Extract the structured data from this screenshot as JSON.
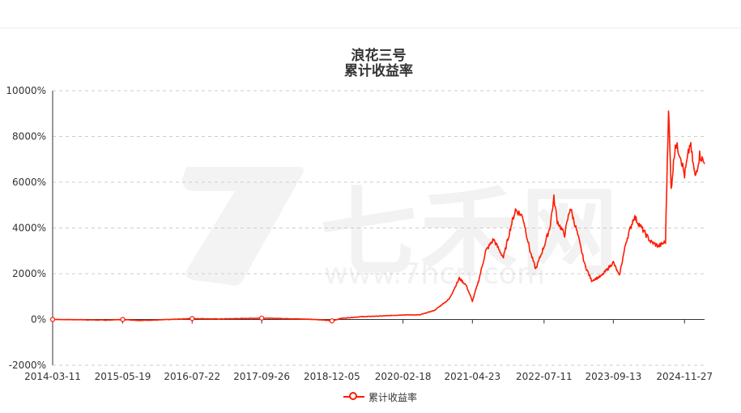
{
  "page": {
    "title_line1": "浪花三号",
    "title_line2": "累计收益率",
    "watermark_text": "七禾网",
    "watermark_url": "www.7hcn.com"
  },
  "legend": {
    "label": "累计收益率"
  },
  "chart_data": {
    "type": "line",
    "title": "浪花三号 累计收益率",
    "xlabel": "",
    "ylabel": "",
    "y_unit": "%",
    "ylim": [
      -2000,
      10000
    ],
    "y_ticks": [
      -2000,
      0,
      2000,
      4000,
      6000,
      8000,
      10000
    ],
    "y_tick_labels": [
      "-2000%",
      "0%",
      "2000%",
      "4000%",
      "6000%",
      "8000%",
      "10000%"
    ],
    "x_tick_labels": [
      "2014-03-11",
      "2015-05-19",
      "2016-07-22",
      "2017-09-26",
      "2018-12-05",
      "2020-02-18",
      "2021-04-23",
      "2022-07-11",
      "2023-09-13",
      "2024-11-27"
    ],
    "xlim": [
      "2014-03-11",
      "2025-03-31"
    ],
    "grid": "horizontal dashed",
    "legend_position": "bottom-center",
    "series": [
      {
        "name": "累计收益率",
        "color": "#ff1a00",
        "points": [
          [
            "2014-03-11",
            0
          ],
          [
            "2014-09-01",
            -10
          ],
          [
            "2015-02-01",
            -30
          ],
          [
            "2015-05-19",
            0
          ],
          [
            "2015-09-01",
            -40
          ],
          [
            "2016-01-01",
            -20
          ],
          [
            "2016-07-22",
            40
          ],
          [
            "2017-01-01",
            20
          ],
          [
            "2017-09-26",
            60
          ],
          [
            "2018-04-01",
            30
          ],
          [
            "2018-09-01",
            0
          ],
          [
            "2018-12-05",
            -60
          ],
          [
            "2019-02-01",
            50
          ],
          [
            "2019-06-01",
            120
          ],
          [
            "2019-10-01",
            150
          ],
          [
            "2020-02-18",
            200
          ],
          [
            "2020-06-01",
            200
          ],
          [
            "2020-09-01",
            400
          ],
          [
            "2020-12-01",
            900
          ],
          [
            "2021-02-01",
            1800
          ],
          [
            "2021-03-15",
            1500
          ],
          [
            "2021-04-23",
            800
          ],
          [
            "2021-06-01",
            1700
          ],
          [
            "2021-07-15",
            3000
          ],
          [
            "2021-09-01",
            3500
          ],
          [
            "2021-11-01",
            2700
          ],
          [
            "2021-12-15",
            4000
          ],
          [
            "2022-01-15",
            4800
          ],
          [
            "2022-03-01",
            4500
          ],
          [
            "2022-04-15",
            3000
          ],
          [
            "2022-05-20",
            2200
          ],
          [
            "2022-07-11",
            3200
          ],
          [
            "2022-08-15",
            4000
          ],
          [
            "2022-09-10",
            5300
          ],
          [
            "2022-10-01",
            4300
          ],
          [
            "2022-11-15",
            3700
          ],
          [
            "2022-12-20",
            4900
          ],
          [
            "2023-02-01",
            3800
          ],
          [
            "2023-03-20",
            2400
          ],
          [
            "2023-05-01",
            1700
          ],
          [
            "2023-07-01",
            1900
          ],
          [
            "2023-09-13",
            2500
          ],
          [
            "2023-10-20",
            1900
          ],
          [
            "2023-12-01",
            3400
          ],
          [
            "2024-01-20",
            4500
          ],
          [
            "2024-03-15",
            3900
          ],
          [
            "2024-05-01",
            3400
          ],
          [
            "2024-06-20",
            3200
          ],
          [
            "2024-08-01",
            3400
          ],
          [
            "2024-08-20",
            9300
          ],
          [
            "2024-09-05",
            5700
          ],
          [
            "2024-10-01",
            7700
          ],
          [
            "2024-11-01",
            7200
          ],
          [
            "2024-11-27",
            6300
          ],
          [
            "2025-01-01",
            7700
          ],
          [
            "2025-02-01",
            6200
          ],
          [
            "2025-03-01",
            7200
          ],
          [
            "2025-03-31",
            6800
          ]
        ]
      }
    ]
  }
}
